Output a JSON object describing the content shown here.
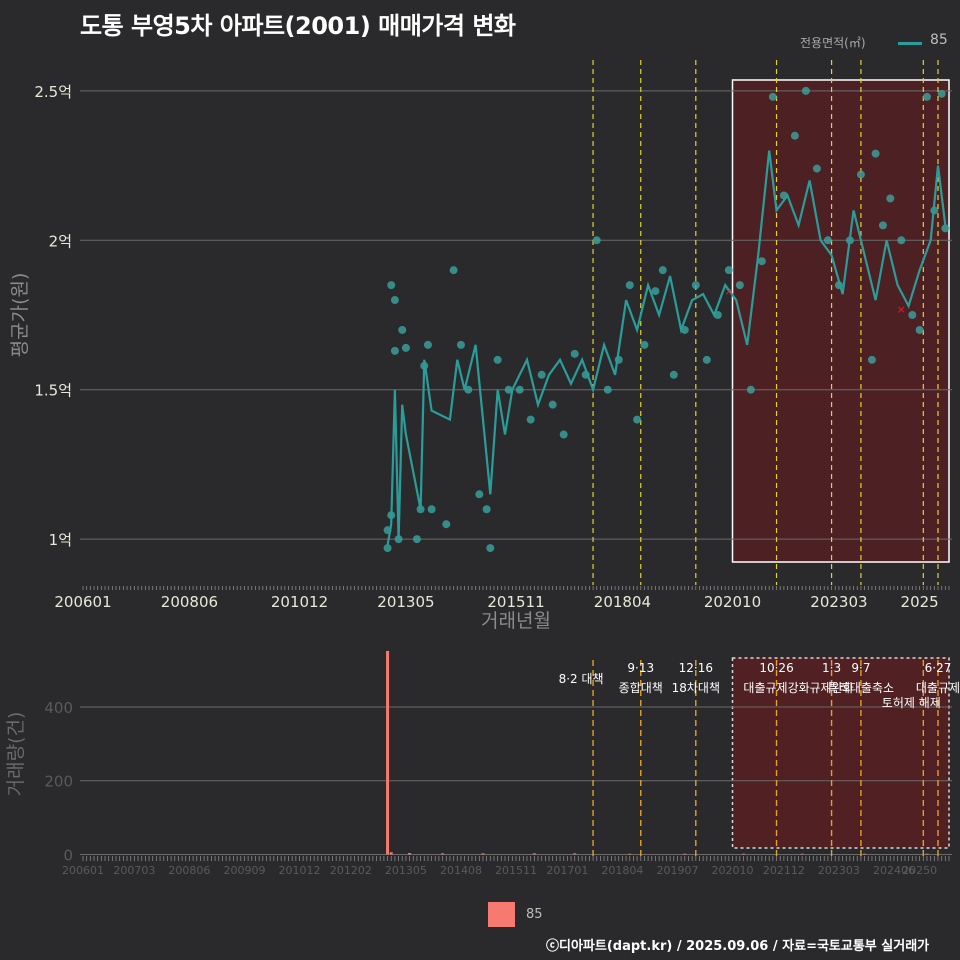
{
  "title": "도통 부영5차 아파트(2001) 매매가격 변화",
  "legend_top": {
    "label": "전용면적(㎡)",
    "value": "85"
  },
  "legend_bottom": {
    "value": "85"
  },
  "footer": "ⓒ디아파트(dapt.kr) / 2025.09.06 / 자료=국토교통부 실거래가",
  "colors": {
    "background": "#2a2a2c",
    "line": "#2a9d9a",
    "point": "#3aa5a0",
    "bar": "#f67a6f",
    "event_line": "#e6d32a",
    "highlight": "#5a1e22",
    "marker": "#e0202a"
  },
  "chart_data": [
    {
      "type": "line",
      "xlabel": "거래년월",
      "ylabel": "평균가(원)",
      "x_ticks": [
        "200601",
        "200806",
        "201012",
        "201305",
        "201511",
        "201804",
        "202010",
        "202303",
        "2025"
      ],
      "y_ticks": [
        {
          "value": 1.0,
          "label": "1억"
        },
        {
          "value": 1.5,
          "label": "1.5억"
        },
        {
          "value": 2.0,
          "label": "2억"
        },
        {
          "value": 2.5,
          "label": "2.5억"
        }
      ],
      "ylim": [
        0.88,
        2.62
      ],
      "grid": true,
      "legend_position": "top-right",
      "series": [
        {
          "name": "85",
          "unit": "억",
          "line": [
            [
              "2012-12",
              0.98
            ],
            [
              "2013-01",
              1.05
            ],
            [
              "2013-02",
              1.5
            ],
            [
              "2013-03",
              1.0
            ],
            [
              "2013-04",
              1.45
            ],
            [
              "2013-05",
              1.35
            ],
            [
              "2013-09",
              1.1
            ],
            [
              "2013-10",
              1.6
            ],
            [
              "2013-12",
              1.43
            ],
            [
              "2014-05",
              1.4
            ],
            [
              "2014-07",
              1.6
            ],
            [
              "2014-09",
              1.5
            ],
            [
              "2014-12",
              1.65
            ],
            [
              "2015-02",
              1.4
            ],
            [
              "2015-04",
              1.15
            ],
            [
              "2015-06",
              1.5
            ],
            [
              "2015-08",
              1.35
            ],
            [
              "2015-10",
              1.5
            ],
            [
              "2016-02",
              1.6
            ],
            [
              "2016-05",
              1.45
            ],
            [
              "2016-08",
              1.55
            ],
            [
              "2016-11",
              1.6
            ],
            [
              "2017-02",
              1.52
            ],
            [
              "2017-05",
              1.6
            ],
            [
              "2017-08",
              1.5
            ],
            [
              "2017-11",
              1.65
            ],
            [
              "2018-02",
              1.55
            ],
            [
              "2018-05",
              1.8
            ],
            [
              "2018-08",
              1.7
            ],
            [
              "2018-11",
              1.85
            ],
            [
              "2019-02",
              1.75
            ],
            [
              "2019-05",
              1.88
            ],
            [
              "2019-08",
              1.7
            ],
            [
              "2019-11",
              1.8
            ],
            [
              "2020-02",
              1.82
            ],
            [
              "2020-05",
              1.75
            ],
            [
              "2020-08",
              1.85
            ],
            [
              "2020-11",
              1.8
            ],
            [
              "2021-02",
              1.65
            ],
            [
              "2021-05",
              1.95
            ],
            [
              "2021-08",
              2.3
            ],
            [
              "2021-10",
              2.1
            ],
            [
              "2022-01",
              2.15
            ],
            [
              "2022-04",
              2.05
            ],
            [
              "2022-07",
              2.2
            ],
            [
              "2022-10",
              2.0
            ],
            [
              "2023-01",
              1.95
            ],
            [
              "2023-04",
              1.82
            ],
            [
              "2023-07",
              2.1
            ],
            [
              "2023-10",
              1.95
            ],
            [
              "2024-01",
              1.8
            ],
            [
              "2024-04",
              2.0
            ],
            [
              "2024-07",
              1.85
            ],
            [
              "2024-10",
              1.78
            ],
            [
              "2025-01",
              1.9
            ],
            [
              "2025-04",
              2.0
            ],
            [
              "2025-06",
              2.25
            ],
            [
              "2025-08",
              2.05
            ]
          ],
          "points": [
            [
              "2012-12",
              0.97
            ],
            [
              "2012-12",
              1.03
            ],
            [
              "2013-01",
              1.08
            ],
            [
              "2013-01",
              1.85
            ],
            [
              "2013-02",
              1.8
            ],
            [
              "2013-02",
              1.63
            ],
            [
              "2013-03",
              1.0
            ],
            [
              "2013-04",
              1.7
            ],
            [
              "2013-05",
              1.64
            ],
            [
              "2013-08",
              1.0
            ],
            [
              "2013-09",
              1.1
            ],
            [
              "2013-10",
              1.58
            ],
            [
              "2013-11",
              1.65
            ],
            [
              "2013-12",
              1.1
            ],
            [
              "2014-04",
              1.05
            ],
            [
              "2014-06",
              1.9
            ],
            [
              "2014-08",
              1.65
            ],
            [
              "2014-10",
              1.5
            ],
            [
              "2015-01",
              1.15
            ],
            [
              "2015-03",
              1.1
            ],
            [
              "2015-04",
              0.97
            ],
            [
              "2015-06",
              1.6
            ],
            [
              "2015-09",
              1.5
            ],
            [
              "2015-12",
              1.5
            ],
            [
              "2016-03",
              1.4
            ],
            [
              "2016-06",
              1.55
            ],
            [
              "2016-09",
              1.45
            ],
            [
              "2016-12",
              1.35
            ],
            [
              "2017-03",
              1.62
            ],
            [
              "2017-06",
              1.55
            ],
            [
              "2017-09",
              2.0
            ],
            [
              "2017-12",
              1.5
            ],
            [
              "2018-03",
              1.6
            ],
            [
              "2018-06",
              1.85
            ],
            [
              "2018-08",
              1.4
            ],
            [
              "2018-10",
              1.65
            ],
            [
              "2019-01",
              1.83
            ],
            [
              "2019-03",
              1.9
            ],
            [
              "2019-06",
              1.55
            ],
            [
              "2019-09",
              1.7
            ],
            [
              "2019-12",
              1.85
            ],
            [
              "2020-03",
              1.6
            ],
            [
              "2020-06",
              1.75
            ],
            [
              "2020-09",
              1.9
            ],
            [
              "2020-12",
              1.85
            ],
            [
              "2021-03",
              1.5
            ],
            [
              "2021-06",
              1.93
            ],
            [
              "2021-09",
              2.48
            ],
            [
              "2021-12",
              2.15
            ],
            [
              "2022-03",
              2.35
            ],
            [
              "2022-06",
              2.5
            ],
            [
              "2022-09",
              2.24
            ],
            [
              "2022-12",
              2.0
            ],
            [
              "2023-03",
              1.85
            ],
            [
              "2023-06",
              2.0
            ],
            [
              "2023-09",
              2.22
            ],
            [
              "2023-12",
              1.6
            ],
            [
              "2024-01",
              2.29
            ],
            [
              "2024-03",
              2.05
            ],
            [
              "2024-05",
              2.14
            ],
            [
              "2024-08",
              2.0
            ],
            [
              "2024-11",
              1.75
            ],
            [
              "2025-01",
              1.7
            ],
            [
              "2025-03",
              2.48
            ],
            [
              "2025-05",
              2.1
            ],
            [
              "2025-07",
              2.49
            ],
            [
              "2025-08",
              2.04
            ]
          ],
          "cancelled": [
            [
              "2020-09",
              1.83
            ],
            [
              "2024-08",
              1.77
            ]
          ]
        }
      ]
    },
    {
      "type": "bar",
      "xlabel": "",
      "ylabel": "거래량(건)",
      "x_ticks": [
        "200601",
        "200703",
        "200806",
        "200909",
        "201012",
        "201202",
        "201305",
        "201408",
        "201511",
        "201701",
        "201804",
        "201907",
        "202010",
        "202112",
        "202303",
        "202406",
        "20250"
      ],
      "y_ticks": [
        0,
        200,
        400
      ],
      "ylim": [
        -15,
        560
      ],
      "grid": true,
      "legend_position": "bottom",
      "series": [
        {
          "name": "85",
          "x": [
            "2012-12",
            "2013-01",
            "2013-06",
            "2014-03",
            "2015-02",
            "2016-04",
            "2017-03",
            "2018-06",
            "2019-09",
            "2021-01",
            "2022-05",
            "2023-10",
            "2025-03"
          ],
          "values": [
            552,
            6,
            4,
            3,
            3,
            3,
            3,
            2,
            2,
            2,
            2,
            2,
            2
          ]
        }
      ]
    }
  ],
  "events": [
    {
      "date": "2017-08",
      "label": "8·2 대책"
    },
    {
      "date": "2018-09",
      "label_top": "9·13",
      "label_bottom": "종합대책"
    },
    {
      "date": "2019-12",
      "label_top": "12·16",
      "label_bottom": "18차대책"
    },
    {
      "date": "2021-10",
      "label_top": "10·26",
      "label_bottom": "대출규제강화"
    },
    {
      "date": "2023-01",
      "label_top": "1·3",
      "label_bottom": "규제완화"
    },
    {
      "date": "2023-09",
      "label_top": "9·7",
      "label_bottom": "특례대출축소"
    },
    {
      "date": "2025-02",
      "label": "토허제 해제"
    },
    {
      "date": "2025-06",
      "label_top": "6·27",
      "label_bottom": "대출규제"
    }
  ],
  "highlight": {
    "start": "2020-10",
    "end": "2025-09"
  }
}
